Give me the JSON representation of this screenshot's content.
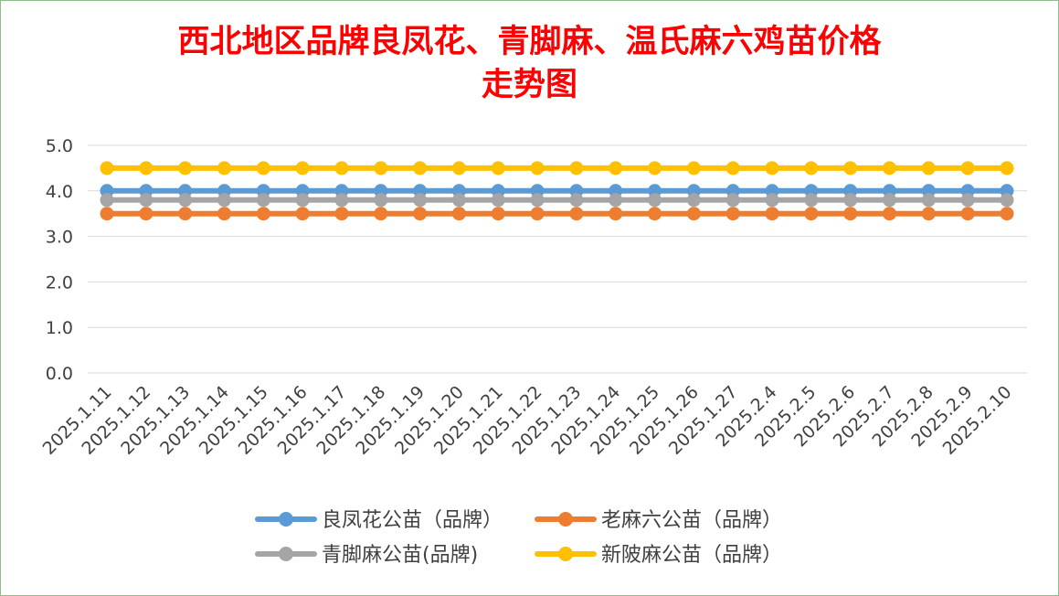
{
  "chart_data": {
    "type": "line",
    "title_line1": "西北地区品牌良凤花、青脚麻、温氏麻六鸡苗价格",
    "title_line2": "走势图",
    "categories": [
      "2025.1.11",
      "2025.1.12",
      "2025.1.13",
      "2025.1.14",
      "2025.1.15",
      "2025.1.16",
      "2025.1.17",
      "2025.1.18",
      "2025.1.19",
      "2025.1.20",
      "2025.1.21",
      "2025.1.22",
      "2025.1.23",
      "2025.1.24",
      "2025.1.25",
      "2025.1.26",
      "2025.1.27",
      "2025.2.4",
      "2025.2.5",
      "2025.2.6",
      "2025.2.7",
      "2025.2.8",
      "2025.2.9",
      "2025.2.10"
    ],
    "ylim": [
      0,
      5
    ],
    "yticks": [
      "0.0",
      "1.0",
      "2.0",
      "3.0",
      "4.0",
      "5.0"
    ],
    "grid": true,
    "legend_position": "bottom",
    "series": [
      {
        "name": "良凤花公苗（品牌）",
        "color": "#5b9bd5",
        "values": [
          4.0,
          4.0,
          4.0,
          4.0,
          4.0,
          4.0,
          4.0,
          4.0,
          4.0,
          4.0,
          4.0,
          4.0,
          4.0,
          4.0,
          4.0,
          4.0,
          4.0,
          4.0,
          4.0,
          4.0,
          4.0,
          4.0,
          4.0,
          4.0
        ]
      },
      {
        "name": "老麻六公苗（品牌）",
        "color": "#ed7d31",
        "values": [
          3.5,
          3.5,
          3.5,
          3.5,
          3.5,
          3.5,
          3.5,
          3.5,
          3.5,
          3.5,
          3.5,
          3.5,
          3.5,
          3.5,
          3.5,
          3.5,
          3.5,
          3.5,
          3.5,
          3.5,
          3.5,
          3.5,
          3.5,
          3.5
        ]
      },
      {
        "name": "青脚麻公苗(品牌)",
        "color": "#a5a5a5",
        "values": [
          3.8,
          3.8,
          3.8,
          3.8,
          3.8,
          3.8,
          3.8,
          3.8,
          3.8,
          3.8,
          3.8,
          3.8,
          3.8,
          3.8,
          3.8,
          3.8,
          3.8,
          3.8,
          3.8,
          3.8,
          3.8,
          3.8,
          3.8,
          3.8
        ]
      },
      {
        "name": "新陂麻公苗（品牌）",
        "color": "#ffc000",
        "values": [
          4.5,
          4.5,
          4.5,
          4.5,
          4.5,
          4.5,
          4.5,
          4.5,
          4.5,
          4.5,
          4.5,
          4.5,
          4.5,
          4.5,
          4.5,
          4.5,
          4.5,
          4.5,
          4.5,
          4.5,
          4.5,
          4.5,
          4.5,
          4.5
        ]
      }
    ]
  }
}
